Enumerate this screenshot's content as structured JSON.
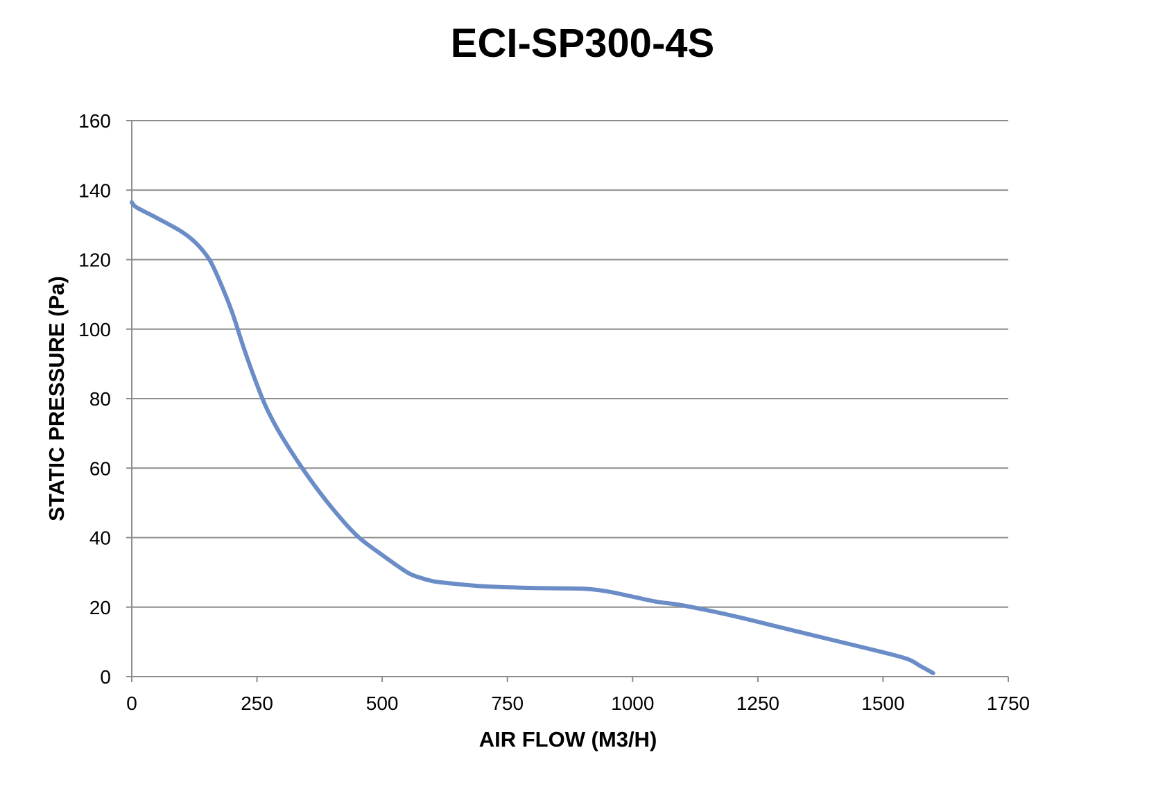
{
  "chart_data": {
    "type": "line",
    "title": "ECI-SP300-4S",
    "xlabel": "AIR FLOW (M3/H)",
    "ylabel": "STATIC PRESSURE (Pa)",
    "xlim": [
      0,
      1750
    ],
    "ylim": [
      0,
      160
    ],
    "x_ticks": [
      0,
      250,
      500,
      750,
      1000,
      1250,
      1500,
      1750
    ],
    "x_tick_labels": [
      "0",
      "250",
      "500",
      "750",
      "1000",
      "1250",
      "1500",
      "1750"
    ],
    "y_ticks": [
      0,
      20,
      40,
      60,
      80,
      100,
      120,
      140,
      160
    ],
    "y_tick_labels": [
      "0",
      "20",
      "40",
      "60",
      "80",
      "100",
      "120",
      "140",
      "160"
    ],
    "grid": true,
    "legend": "none",
    "series": [
      {
        "color": "#6a8cc7",
        "x": [
          0,
          10,
          50,
          100,
          130,
          155,
          175,
          200,
          225,
          250,
          270,
          300,
          350,
          400,
          450,
          500,
          550,
          575,
          600,
          625,
          700,
          800,
          900,
          950,
          1000,
          1050,
          1100,
          1200,
          1300,
          1400,
          1500,
          1550,
          1575,
          1600
        ],
        "y": [
          136.5,
          135,
          132,
          128,
          124.5,
          120,
          114,
          105,
          94,
          84,
          77,
          69,
          58,
          48.5,
          40.5,
          35,
          30,
          28.5,
          27.5,
          27,
          26,
          25.5,
          25.3,
          24.5,
          23,
          21.5,
          20.5,
          17.5,
          14,
          10.5,
          7,
          5,
          3,
          1
        ]
      }
    ]
  }
}
